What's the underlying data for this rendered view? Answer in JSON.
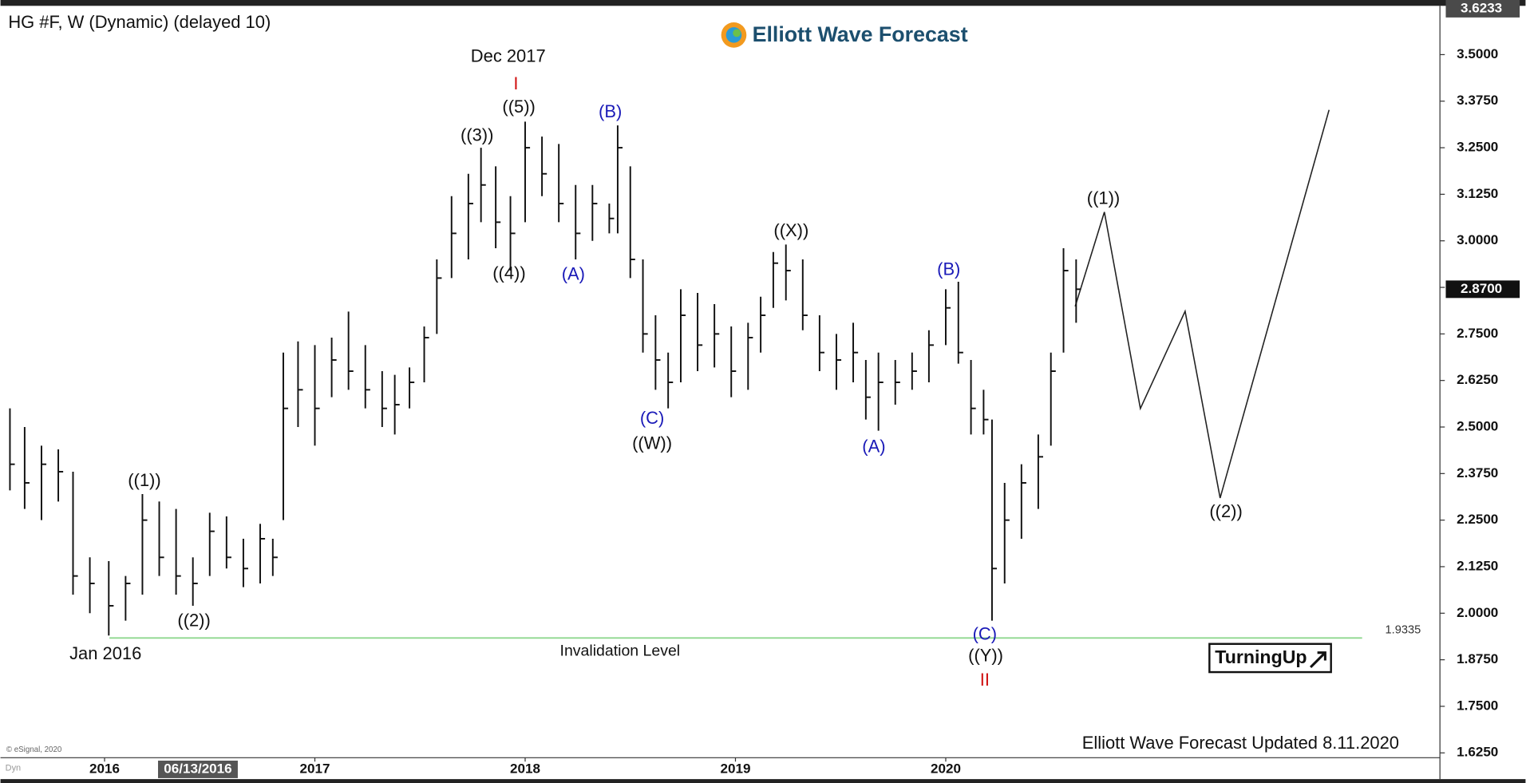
{
  "chart_data": {
    "type": "ohlc",
    "title": "HG #F, W (Dynamic) (delayed 10)",
    "logo": "Elliott Wave Forecast",
    "badge": "TurningUp",
    "footer": "Elliott Wave Forecast Updated 8.11.2020",
    "copyright": "© eSignal, 2020",
    "mode_label": "Dyn",
    "cursor_label": "06/13/2016",
    "x": [
      2015.55,
      2015.62,
      2015.7,
      2015.78,
      2015.85,
      2015.93,
      2016.02,
      2016.1,
      2016.18,
      2016.26,
      2016.34,
      2016.42,
      2016.5,
      2016.58,
      2016.66,
      2016.74,
      2016.8,
      2016.85,
      2016.92,
      2017.0,
      2017.08,
      2017.16,
      2017.24,
      2017.32,
      2017.38,
      2017.45,
      2017.52,
      2017.58,
      2017.65,
      2017.73,
      2017.79,
      2017.86,
      2017.93,
      2018.0,
      2018.08,
      2018.16,
      2018.24,
      2018.32,
      2018.4,
      2018.44,
      2018.5,
      2018.56,
      2018.62,
      2018.68,
      2018.74,
      2018.82,
      2018.9,
      2018.98,
      2019.06,
      2019.12,
      2019.18,
      2019.24,
      2019.32,
      2019.4,
      2019.48,
      2019.56,
      2019.62,
      2019.68,
      2019.76,
      2019.84,
      2019.92,
      2020.0,
      2020.06,
      2020.12,
      2020.18,
      2020.22,
      2020.28,
      2020.36,
      2020.44,
      2020.5,
      2020.56,
      2020.62
    ],
    "high": [
      2.55,
      2.5,
      2.45,
      2.44,
      2.38,
      2.15,
      2.14,
      2.1,
      2.32,
      2.3,
      2.28,
      2.15,
      2.27,
      2.26,
      2.2,
      2.24,
      2.2,
      2.7,
      2.73,
      2.72,
      2.74,
      2.81,
      2.72,
      2.65,
      2.64,
      2.66,
      2.77,
      2.95,
      3.12,
      3.18,
      3.25,
      3.2,
      3.12,
      3.32,
      3.28,
      3.26,
      3.15,
      3.15,
      3.1,
      3.31,
      3.2,
      2.95,
      2.8,
      2.7,
      2.87,
      2.86,
      2.83,
      2.77,
      2.78,
      2.85,
      2.97,
      2.99,
      2.95,
      2.8,
      2.75,
      2.78,
      2.68,
      2.7,
      2.68,
      2.7,
      2.76,
      2.87,
      2.89,
      2.68,
      2.6,
      2.52,
      2.35,
      2.4,
      2.48,
      2.7,
      2.98,
      2.95
    ],
    "low": [
      2.33,
      2.28,
      2.25,
      2.3,
      2.05,
      2.0,
      1.94,
      1.98,
      2.05,
      2.1,
      2.05,
      2.02,
      2.1,
      2.12,
      2.07,
      2.08,
      2.1,
      2.25,
      2.5,
      2.45,
      2.58,
      2.6,
      2.55,
      2.5,
      2.48,
      2.55,
      2.62,
      2.75,
      2.9,
      2.95,
      3.05,
      2.98,
      2.92,
      3.05,
      3.12,
      3.05,
      2.95,
      3.0,
      3.02,
      3.02,
      2.9,
      2.7,
      2.6,
      2.55,
      2.62,
      2.65,
      2.66,
      2.58,
      2.6,
      2.7,
      2.82,
      2.84,
      2.76,
      2.65,
      2.6,
      2.62,
      2.52,
      2.49,
      2.56,
      2.6,
      2.62,
      2.72,
      2.67,
      2.48,
      2.48,
      1.98,
      2.08,
      2.2,
      2.28,
      2.45,
      2.7,
      2.78
    ],
    "close": [
      2.4,
      2.35,
      2.4,
      2.38,
      2.1,
      2.08,
      2.02,
      2.08,
      2.25,
      2.15,
      2.1,
      2.08,
      2.22,
      2.15,
      2.12,
      2.2,
      2.15,
      2.55,
      2.6,
      2.55,
      2.68,
      2.65,
      2.6,
      2.55,
      2.56,
      2.62,
      2.74,
      2.9,
      3.02,
      3.1,
      3.15,
      3.05,
      3.02,
      3.25,
      3.18,
      3.1,
      3.02,
      3.1,
      3.06,
      3.25,
      2.95,
      2.75,
      2.68,
      2.62,
      2.8,
      2.72,
      2.75,
      2.65,
      2.74,
      2.8,
      2.94,
      2.92,
      2.8,
      2.7,
      2.68,
      2.7,
      2.58,
      2.62,
      2.62,
      2.65,
      2.72,
      2.82,
      2.7,
      2.55,
      2.52,
      2.12,
      2.25,
      2.35,
      2.42,
      2.65,
      2.92,
      2.87
    ],
    "color": "#111111",
    "xlim": [
      2015.505,
      2022.35
    ],
    "xticks": [
      2016,
      2017,
      2018,
      2019,
      2020
    ],
    "ylim": [
      1.612,
      3.631
    ],
    "yticks": [
      {
        "value": 1.625,
        "label": "1.6250"
      },
      {
        "value": 1.75,
        "label": "1.7500"
      },
      {
        "value": 1.875,
        "label": "1.8750"
      },
      {
        "value": 2.0,
        "label": "2.0000"
      },
      {
        "value": 2.125,
        "label": "2.1250"
      },
      {
        "value": 2.25,
        "label": "2.2500"
      },
      {
        "value": 2.375,
        "label": "2.3750"
      },
      {
        "value": 2.5,
        "label": "2.5000"
      },
      {
        "value": 2.625,
        "label": "2.6250"
      },
      {
        "value": 2.75,
        "label": "2.7500"
      },
      {
        "value": 2.875,
        "label": "2.8750"
      },
      {
        "value": 3.0,
        "label": "3.0000"
      },
      {
        "value": 3.125,
        "label": "3.1250"
      },
      {
        "value": 3.25,
        "label": "3.2500"
      },
      {
        "value": 3.375,
        "label": "3.3750"
      },
      {
        "value": 3.5,
        "label": "3.5000"
      }
    ],
    "top_price": {
      "value": 3.6233,
      "label": "3.6233"
    },
    "last_price": {
      "value": 2.87,
      "label": "2.8700"
    },
    "invalidation": {
      "value": 1.9335,
      "label": "Invalidation Level",
      "color": "#8fd88f"
    },
    "annotations": [
      {
        "text": "Dec 2017",
        "color": "#111"
      },
      {
        "text": "I",
        "color": "#d01010"
      },
      {
        "text": "((5))",
        "color": "#111"
      },
      {
        "text": "((3))",
        "color": "#111"
      },
      {
        "text": "((4))",
        "color": "#111"
      },
      {
        "text": "(A)",
        "color": "#1a1ab8"
      },
      {
        "text": "(B)",
        "color": "#1a1ab8"
      },
      {
        "text": "(C)",
        "color": "#1a1ab8"
      },
      {
        "text": "((W))",
        "color": "#111"
      },
      {
        "text": "((X))",
        "color": "#111"
      },
      {
        "text": "(B)",
        "color": "#1a1ab8"
      },
      {
        "text": "(A)",
        "color": "#1a1ab8"
      },
      {
        "text": "(C)",
        "color": "#1a1ab8"
      },
      {
        "text": "((Y))",
        "color": "#111"
      },
      {
        "text": "II",
        "color": "#d01010"
      },
      {
        "text": "((1))",
        "color": "#111"
      },
      {
        "text": "((2))",
        "color": "#111"
      },
      {
        "text": "Jan 2016",
        "color": "#111"
      },
      {
        "text": "((1))",
        "color": "#111"
      },
      {
        "text": "((2))",
        "color": "#111"
      }
    ]
  }
}
